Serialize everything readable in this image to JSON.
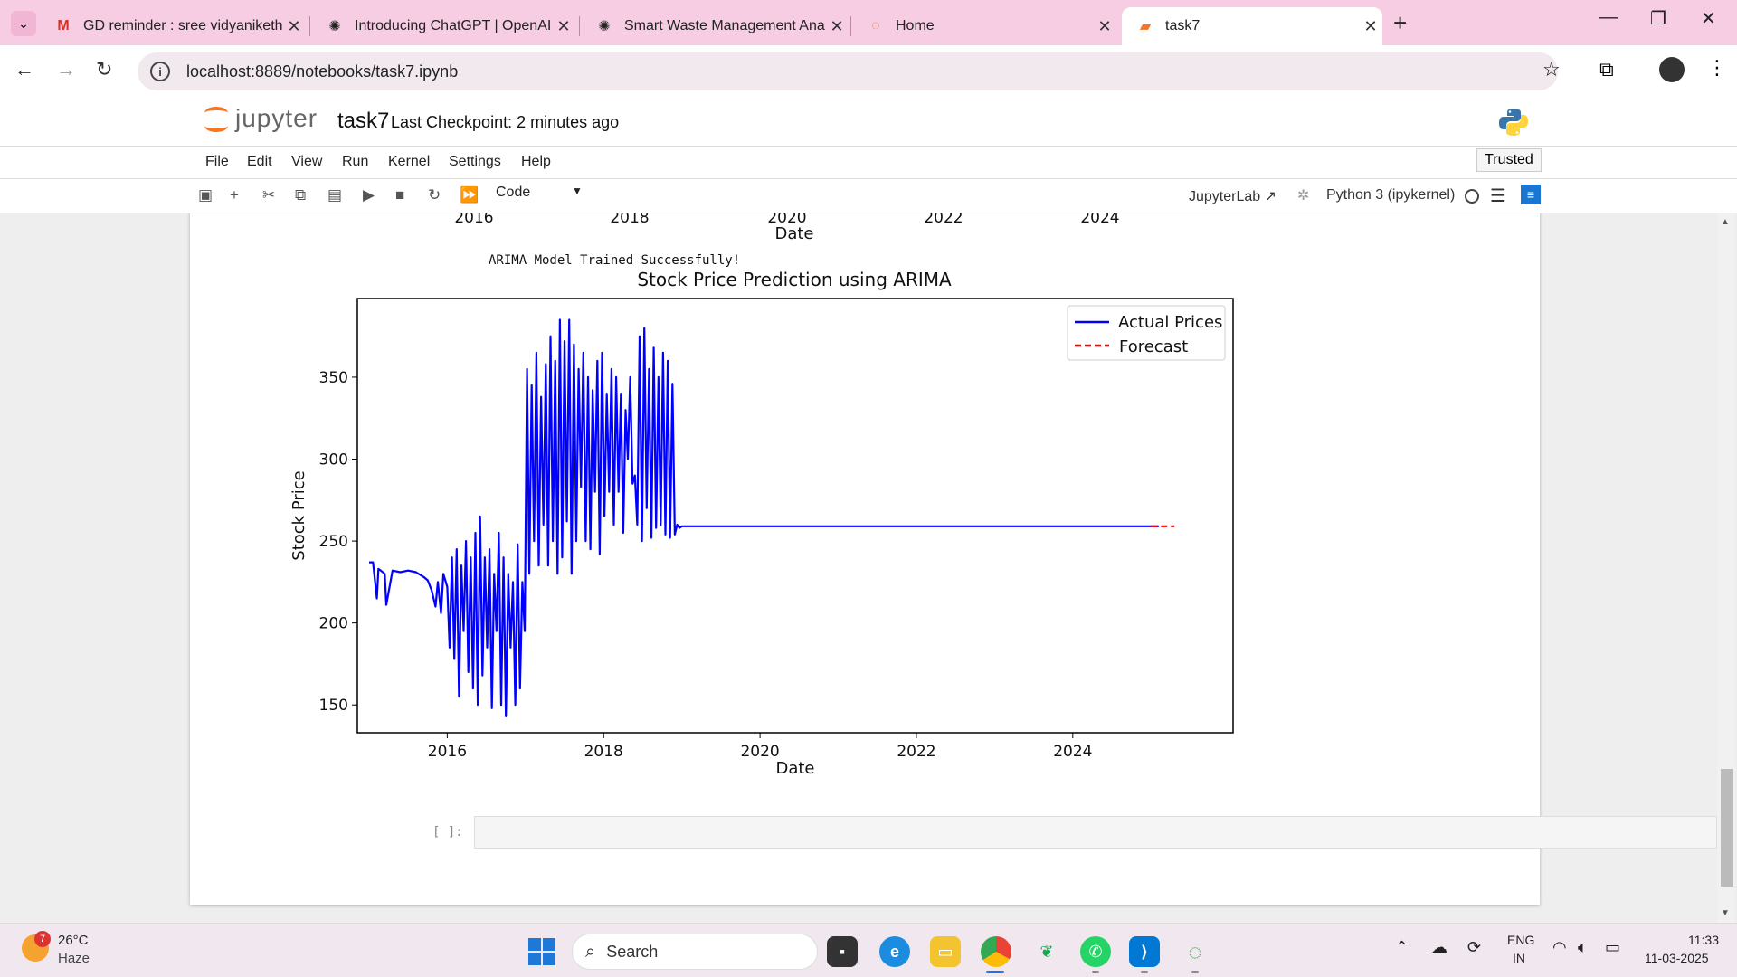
{
  "browser": {
    "tabs": [
      {
        "title": "GD reminder : sree vidyaniketha",
        "icon": "gmail-icon"
      },
      {
        "title": "Introducing ChatGPT | OpenAI",
        "icon": "openai-icon"
      },
      {
        "title": "Smart Waste Management Anal",
        "icon": "chatgpt-icon"
      },
      {
        "title": "Home",
        "icon": "jupyter-icon"
      },
      {
        "title": "task7",
        "icon": "notebook-icon"
      }
    ],
    "url": "localhost:8889/notebooks/task7.ipynb"
  },
  "jupyter": {
    "logo_text": "jupyter",
    "notebook_name": "task7",
    "checkpoint": "Last Checkpoint: 2 minutes ago",
    "menu": [
      "File",
      "Edit",
      "View",
      "Run",
      "Kernel",
      "Settings",
      "Help"
    ],
    "trusted": "Trusted",
    "cell_type": "Code",
    "jupyterlab_link": "JupyterLab",
    "kernel": "Python 3 (ipykernel)",
    "prev_plot": {
      "ticks": [
        "2016",
        "2018",
        "2020",
        "2022",
        "2024"
      ],
      "xlabel": "Date"
    },
    "output_text": "ARIMA Model Trained Successfully!",
    "empty_prompt": "[ ]:"
  },
  "chart_data": {
    "type": "line",
    "title": "Stock Price Prediction using ARIMA",
    "xlabel": "Date",
    "ylabel": "Stock Price",
    "xlim": [
      2014.85,
      2026.05
    ],
    "ylim": [
      133,
      398
    ],
    "x_ticks": [
      2016,
      2018,
      2020,
      2022,
      2024
    ],
    "x_tick_labels": [
      "2016",
      "2018",
      "2020",
      "2022",
      "2024"
    ],
    "y_ticks": [
      150,
      200,
      250,
      300,
      350
    ],
    "y_tick_labels": [
      "150",
      "200",
      "250",
      "300",
      "350"
    ],
    "legend_position": "top-right",
    "series": [
      {
        "name": "Actual Prices",
        "color": "#0000ff",
        "style": "solid",
        "x": [
          2015.0,
          2015.05,
          2015.1,
          2015.12,
          2015.15,
          2015.2,
          2015.22,
          2015.3,
          2015.4,
          2015.5,
          2015.6,
          2015.7,
          2015.75,
          2015.8,
          2015.85,
          2015.88,
          2015.92,
          2015.95,
          2016.0,
          2016.03,
          2016.06,
          2016.09,
          2016.12,
          2016.15,
          2016.18,
          2016.21,
          2016.24,
          2016.27,
          2016.3,
          2016.33,
          2016.36,
          2016.39,
          2016.42,
          2016.45,
          2016.48,
          2016.51,
          2016.54,
          2016.57,
          2016.6,
          2016.63,
          2016.66,
          2016.69,
          2016.72,
          2016.75,
          2016.78,
          2016.81,
          2016.84,
          2016.87,
          2016.9,
          2016.93,
          2016.96,
          2016.99,
          2017.02,
          2017.05,
          2017.08,
          2017.11,
          2017.14,
          2017.17,
          2017.2,
          2017.23,
          2017.26,
          2017.29,
          2017.32,
          2017.35,
          2017.38,
          2017.41,
          2017.44,
          2017.47,
          2017.5,
          2017.53,
          2017.56,
          2017.59,
          2017.62,
          2017.65,
          2017.68,
          2017.71,
          2017.74,
          2017.77,
          2017.8,
          2017.83,
          2017.86,
          2017.89,
          2017.92,
          2017.95,
          2017.98,
          2018.01,
          2018.04,
          2018.07,
          2018.1,
          2018.13,
          2018.16,
          2018.19,
          2018.22,
          2018.25,
          2018.28,
          2018.31,
          2018.34,
          2018.37,
          2018.4,
          2018.43,
          2018.46,
          2018.49,
          2018.52,
          2018.55,
          2018.58,
          2018.61,
          2018.64,
          2018.67,
          2018.7,
          2018.73,
          2018.76,
          2018.79,
          2018.82,
          2018.85,
          2018.88,
          2018.91,
          2018.94,
          2018.97,
          2019.0,
          2019.1,
          2020.0,
          2021.0,
          2022.0,
          2023.0,
          2024.0,
          2025.0,
          2025.1
        ],
        "y": [
          237,
          237,
          215,
          233,
          232,
          230,
          211,
          232,
          231,
          232,
          231,
          228,
          226,
          220,
          210,
          225,
          206,
          230,
          222,
          185,
          240,
          178,
          245,
          155,
          235,
          195,
          250,
          170,
          240,
          160,
          255,
          150,
          265,
          168,
          240,
          185,
          245,
          148,
          230,
          195,
          255,
          150,
          240,
          143,
          230,
          185,
          225,
          150,
          248,
          160,
          225,
          195,
          355,
          230,
          345,
          250,
          365,
          235,
          338,
          260,
          358,
          235,
          375,
          250,
          360,
          230,
          385,
          240,
          372,
          262,
          385,
          230,
          370,
          250,
          355,
          283,
          365,
          250,
          350,
          245,
          342,
          280,
          360,
          242,
          365,
          265,
          340,
          280,
          355,
          260,
          350,
          280,
          340,
          255,
          330,
          300,
          350,
          285,
          290,
          260,
          375,
          250,
          380,
          270,
          355,
          252,
          368,
          258,
          350,
          260,
          365,
          254,
          360,
          252,
          346,
          254,
          260,
          258,
          259,
          259,
          259,
          259,
          259,
          259,
          259,
          259,
          259
        ]
      },
      {
        "name": "Forecast",
        "color": "#ff0000",
        "style": "dashed",
        "x": [
          2025.0,
          2025.3
        ],
        "y": [
          259,
          259
        ]
      }
    ]
  },
  "taskbar": {
    "weather_badge": "7",
    "temperature": "26°C",
    "condition": "Haze",
    "search": "Search",
    "lang1": "ENG",
    "lang2": "IN",
    "time": "11:33",
    "date": "11-03-2025"
  }
}
